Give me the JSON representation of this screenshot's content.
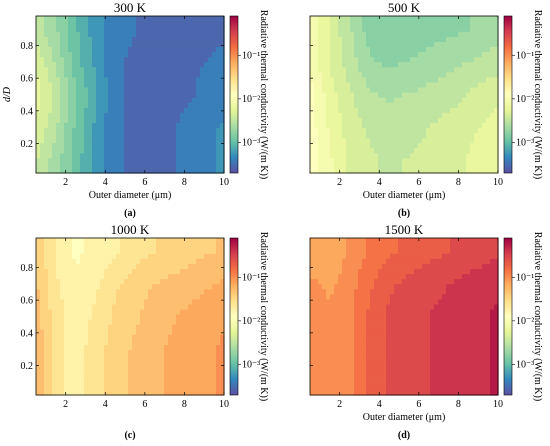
{
  "chart_data": [
    {
      "type": "heatmap",
      "panel_label": "(a)",
      "title": "300 K",
      "xlabel": "Outer diameter (μm)",
      "ylabel": "d/D",
      "colorbar_label": "Radiative thermal conductivity (W/(m K))",
      "x_ticks": [
        "2",
        "4",
        "6",
        "8",
        "10"
      ],
      "y_ticks": [
        "0.2",
        "0.4",
        "0.6",
        "0.8"
      ],
      "colorbar_ticks": [
        "10⁻¹",
        "10⁻²",
        "10⁻³"
      ],
      "xlim": [
        0.5,
        10
      ],
      "ylim": [
        0.02,
        0.98
      ],
      "value_log_range": [
        -3.7,
        -0.1
      ],
      "grid": false,
      "x": [
        0.5,
        1.5,
        2.5,
        3.5,
        4.5,
        6,
        8,
        10
      ],
      "y": [
        0.1,
        0.3,
        0.5,
        0.7,
        0.9
      ],
      "log10_values": [
        [
          -2.4,
          -2.65,
          -2.95,
          -3.2,
          -3.45,
          -3.55,
          -3.45,
          -3.3
        ],
        [
          -2.3,
          -2.55,
          -2.9,
          -3.2,
          -3.45,
          -3.55,
          -3.45,
          -3.3
        ],
        [
          -2.2,
          -2.45,
          -2.85,
          -3.15,
          -3.45,
          -3.55,
          -3.5,
          -3.4
        ],
        [
          -2.3,
          -2.6,
          -2.95,
          -3.2,
          -3.45,
          -3.55,
          -3.5,
          -3.45
        ],
        [
          -2.5,
          -2.7,
          -3.0,
          -3.25,
          -3.4,
          -3.5,
          -3.5,
          -3.5
        ]
      ]
    },
    {
      "type": "heatmap",
      "panel_label": "(b)",
      "title": "500 K",
      "xlabel": "Outer diameter (μm)",
      "ylabel": "",
      "colorbar_label": "Radiative thermal conductivity (W/(m K))",
      "x_ticks": [
        "2",
        "4",
        "6",
        "8",
        "10"
      ],
      "y_ticks": [],
      "colorbar_ticks": [
        "10⁻¹",
        "10⁻²",
        "10⁻³"
      ],
      "xlim": [
        0.5,
        10
      ],
      "ylim": [
        0.02,
        0.98
      ],
      "value_log_range": [
        -3.7,
        -0.1
      ],
      "grid": false,
      "x": [
        0.5,
        1.5,
        2.5,
        3.5,
        4.5,
        6,
        8,
        10
      ],
      "y": [
        0.1,
        0.3,
        0.5,
        0.7,
        0.9
      ],
      "log10_values": [
        [
          -1.9,
          -2.1,
          -2.3,
          -2.4,
          -2.45,
          -2.4,
          -2.3,
          -2.15
        ],
        [
          -1.9,
          -2.15,
          -2.35,
          -2.45,
          -2.5,
          -2.45,
          -2.35,
          -2.2
        ],
        [
          -1.9,
          -2.2,
          -2.4,
          -2.55,
          -2.6,
          -2.55,
          -2.45,
          -2.3
        ],
        [
          -2.0,
          -2.3,
          -2.5,
          -2.7,
          -2.75,
          -2.7,
          -2.6,
          -2.5
        ],
        [
          -2.0,
          -2.3,
          -2.55,
          -2.8,
          -2.85,
          -2.8,
          -2.75,
          -2.65
        ]
      ]
    },
    {
      "type": "heatmap",
      "panel_label": "(c)",
      "title": "1000 K",
      "xlabel": "",
      "ylabel": "",
      "colorbar_label": "Radiative thermal conductivity (W/(m K))",
      "x_ticks": [
        "2",
        "4",
        "6",
        "8",
        "10"
      ],
      "y_ticks": [
        "0.2",
        "0.4",
        "0.6",
        "0.8"
      ],
      "colorbar_ticks": [
        "10⁻¹",
        "10⁻²",
        "10⁻³"
      ],
      "xlim": [
        0.5,
        10
      ],
      "ylim": [
        0.02,
        0.98
      ],
      "value_log_range": [
        -3.7,
        -0.1
      ],
      "grid": false,
      "x": [
        0.5,
        1.5,
        2.5,
        3.5,
        4.5,
        6,
        8,
        10
      ],
      "y": [
        0.1,
        0.3,
        0.5,
        0.7,
        0.9
      ],
      "log10_values": [
        [
          -1.25,
          -1.6,
          -1.75,
          -1.6,
          -1.45,
          -1.3,
          -1.15,
          -1.05
        ],
        [
          -1.25,
          -1.6,
          -1.75,
          -1.6,
          -1.45,
          -1.3,
          -1.15,
          -1.05
        ],
        [
          -1.3,
          -1.6,
          -1.75,
          -1.65,
          -1.5,
          -1.35,
          -1.2,
          -1.1
        ],
        [
          -1.35,
          -1.65,
          -1.8,
          -1.7,
          -1.55,
          -1.4,
          -1.3,
          -1.2
        ],
        [
          -1.4,
          -1.7,
          -1.85,
          -1.8,
          -1.7,
          -1.55,
          -1.45,
          -1.35
        ]
      ]
    },
    {
      "type": "heatmap",
      "panel_label": "(d)",
      "title": "1500 K",
      "xlabel": "Outer diameter (μm)",
      "ylabel": "",
      "colorbar_label": "Radiative thermal conductivity (W/(m K))",
      "x_ticks": [
        "2",
        "4",
        "6",
        "8",
        "10"
      ],
      "y_ticks": [],
      "colorbar_ticks": [
        "10⁻¹",
        "10⁻²",
        "10⁻³"
      ],
      "xlim": [
        0.5,
        10
      ],
      "ylim": [
        0.02,
        0.98
      ],
      "value_log_range": [
        -3.7,
        -0.1
      ],
      "grid": false,
      "x": [
        0.5,
        1.5,
        2.5,
        3.5,
        4.5,
        6,
        8,
        10
      ],
      "y": [
        0.1,
        0.3,
        0.5,
        0.7,
        0.9
      ],
      "log10_values": [
        [
          -1.0,
          -1.05,
          -0.95,
          -0.75,
          -0.6,
          -0.5,
          -0.4,
          -0.3
        ],
        [
          -1.0,
          -1.05,
          -0.95,
          -0.75,
          -0.6,
          -0.5,
          -0.4,
          -0.3
        ],
        [
          -1.0,
          -1.05,
          -0.95,
          -0.75,
          -0.6,
          -0.5,
          -0.4,
          -0.3
        ],
        [
          -1.05,
          -1.1,
          -1.0,
          -0.8,
          -0.65,
          -0.55,
          -0.45,
          -0.35
        ],
        [
          -1.15,
          -1.2,
          -1.05,
          -0.9,
          -0.8,
          -0.7,
          -0.6,
          -0.5
        ]
      ]
    }
  ],
  "colormap": [
    "#5e4fa2",
    "#3288bd",
    "#66c2a5",
    "#abdda4",
    "#e6f598",
    "#ffffbf",
    "#fee08b",
    "#fdae61",
    "#f46d43",
    "#d53e4f",
    "#9e0142"
  ]
}
